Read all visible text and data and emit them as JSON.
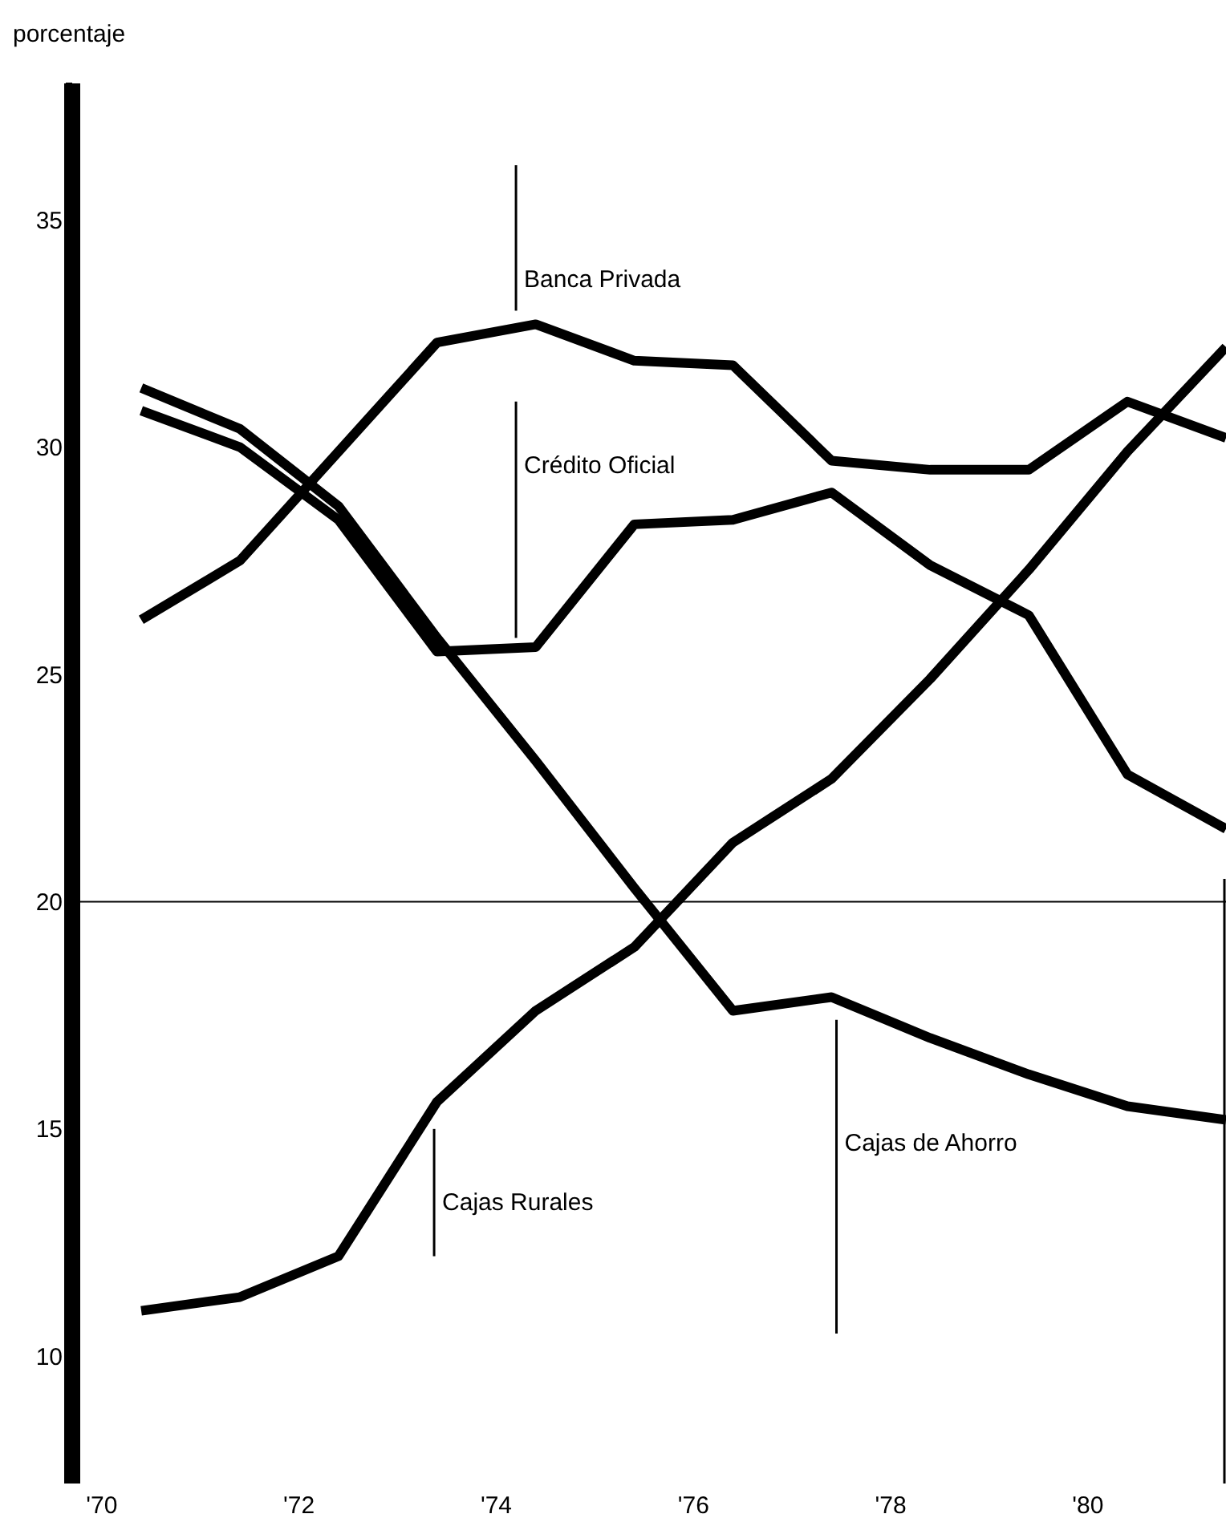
{
  "chart_data": {
    "type": "line",
    "ylabel": "porcentaje",
    "x": [
      1970.4,
      1971.4,
      1972.4,
      1973.4,
      1974.4,
      1975.4,
      1976.4,
      1977.4,
      1978.4,
      1979.4,
      1980.4,
      1981.4
    ],
    "series": [
      {
        "name": "Banca Privada",
        "color": "#000000",
        "values": [
          26.2,
          27.5,
          29.9,
          32.3,
          32.7,
          31.9,
          31.8,
          29.7,
          29.5,
          29.5,
          31.0,
          30.2
        ]
      },
      {
        "name": "Crédito Oficial",
        "color": "#000000",
        "values": [
          30.8,
          30.0,
          28.4,
          25.5,
          25.6,
          28.3,
          28.4,
          29.0,
          27.4,
          26.3,
          22.8,
          21.6
        ]
      },
      {
        "name": "Cajas Rurales",
        "color": "#000000",
        "values": [
          11.0,
          11.3,
          12.2,
          15.6,
          17.6,
          19.0,
          21.3,
          22.7,
          24.9,
          27.3,
          29.9,
          32.2
        ]
      },
      {
        "name": "Cajas de Ahorro",
        "color": "#000000",
        "values": [
          31.3,
          30.4,
          28.7,
          25.8,
          23.1,
          20.3,
          17.6,
          17.9,
          17.0,
          16.2,
          15.5,
          15.2
        ]
      }
    ],
    "xlim": [
      1969.7,
      1981.4
    ],
    "xticks": [
      {
        "value": 1970,
        "label": "'70"
      },
      {
        "value": 1972,
        "label": "'72"
      },
      {
        "value": 1974,
        "label": "'74"
      },
      {
        "value": 1976,
        "label": "'76"
      },
      {
        "value": 1978,
        "label": "'78"
      },
      {
        "value": 1980,
        "label": "'80"
      }
    ],
    "ylim": [
      7.2,
      38
    ],
    "yticks": [
      10,
      15,
      20,
      25,
      30,
      35,
      {
        "value": 38,
        "label": null
      }
    ],
    "ref_lines": [
      {
        "axis": "y",
        "value": 20,
        "color": "#000000"
      }
    ],
    "grid": false,
    "legend": false,
    "marker": "none",
    "line_style": "solid"
  }
}
